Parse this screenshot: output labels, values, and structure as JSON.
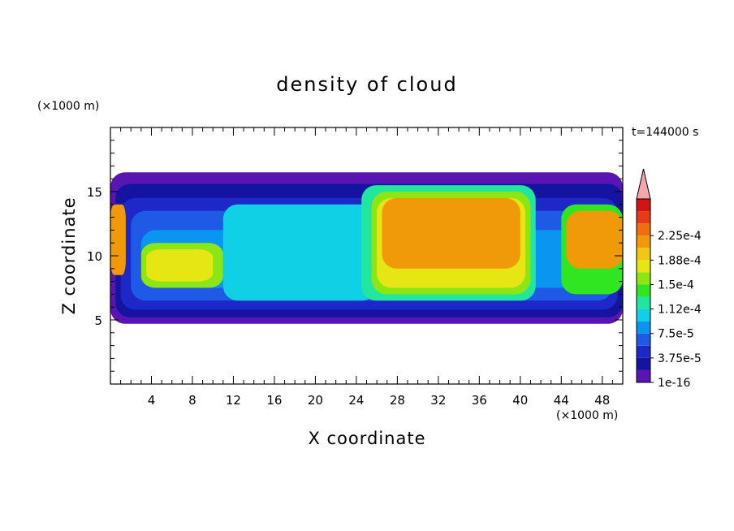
{
  "chart_data": {
    "type": "heatmap",
    "title": "density of cloud",
    "xlabel": "X coordinate",
    "ylabel": "Z coordinate",
    "x_unit": "(×1000 m)",
    "y_unit": "(×1000 m)",
    "time_label": "t=144000 s",
    "xlim": [
      0,
      50
    ],
    "ylim": [
      0,
      20
    ],
    "x_ticks": [
      "4",
      "8",
      "12",
      "16",
      "20",
      "24",
      "28",
      "32",
      "36",
      "40",
      "44",
      "48"
    ],
    "y_ticks": [
      "5",
      "10",
      "15"
    ],
    "colorbar": {
      "labels": [
        "1e-16",
        "3.75e-5",
        "7.5e-5",
        "1.12e-4",
        "1.5e-4",
        "1.88e-4",
        "2.25e-4"
      ],
      "colors": [
        "#5a14b4",
        "#1414a0",
        "#1e28c8",
        "#1e5ae6",
        "#0a96f0",
        "#10d0e6",
        "#20e6a0",
        "#30e620",
        "#8ce614",
        "#e6e614",
        "#f0c814",
        "#f09a0a",
        "#f06e10",
        "#e63c14",
        "#d21414",
        "#f4a6aa"
      ]
    },
    "regions": [
      {
        "x0": 0,
        "x1": 50,
        "z0": 4.7,
        "z1": 16.5,
        "level": 0
      },
      {
        "x0": 0.5,
        "x1": 50,
        "z0": 5.2,
        "z1": 15.6,
        "level": 1
      },
      {
        "x0": 1,
        "x1": 49.5,
        "z0": 5.8,
        "z1": 14.5,
        "level": 2
      },
      {
        "x0": 2,
        "x1": 49,
        "z0": 6.5,
        "z1": 13.5,
        "level": 3
      },
      {
        "x0": 3,
        "x1": 48,
        "z0": 7.5,
        "z1": 12,
        "level": 4
      },
      {
        "x0": 3,
        "x1": 11,
        "z0": 7.5,
        "z1": 11,
        "level": 8
      },
      {
        "x0": 3.5,
        "x1": 10,
        "z0": 8,
        "z1": 10.5,
        "level": 9
      },
      {
        "x0": 11,
        "x1": 26,
        "z0": 6.5,
        "z1": 14,
        "level": 5
      },
      {
        "x0": 24.5,
        "x1": 41.5,
        "z0": 6.5,
        "z1": 15.5,
        "level": 6
      },
      {
        "x0": 25.5,
        "x1": 41,
        "z0": 7,
        "z1": 15,
        "level": 8
      },
      {
        "x0": 26,
        "x1": 40.5,
        "z0": 7.5,
        "z1": 14.5,
        "level": 9
      },
      {
        "x0": 26.5,
        "x1": 40,
        "z0": 9,
        "z1": 14.5,
        "level": 11
      },
      {
        "x0": 44,
        "x1": 50,
        "z0": 7,
        "z1": 14,
        "level": 7
      },
      {
        "x0": 44.5,
        "x1": 50,
        "z0": 9,
        "z1": 13.5,
        "level": 11
      },
      {
        "x0": 0,
        "x1": 1.5,
        "z0": 8.5,
        "z1": 14,
        "level": 11
      }
    ]
  }
}
